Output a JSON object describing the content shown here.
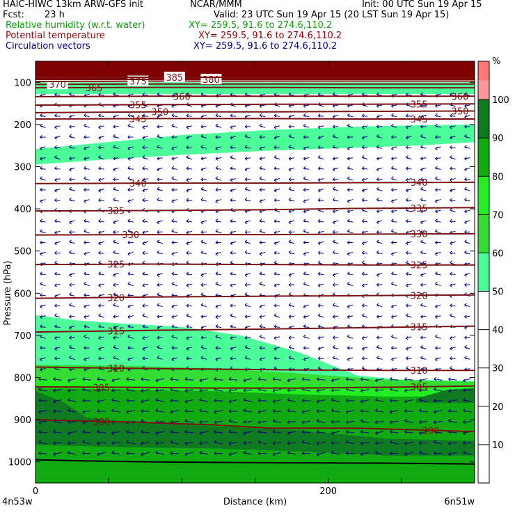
{
  "header": {
    "model": "HAIC-HIWC 13km ARW-GFS init",
    "org": "NCAR/MMM",
    "init": "Init: 00 UTC Sun 19 Apr 15",
    "fcst_label": "Fcst:",
    "fcst_value": "23 h",
    "valid": "Valid: 23 UTC Sun 19 Apr 15 (20 LST Sun 19 Apr 15)",
    "field1": "Relative humidity (w.r.t. water)",
    "field1_xy": "XY= 259.5, 91.6 to 274.6,110.2",
    "field2": "Potential temperature",
    "field2_xy": "XY= 259.5, 91.6 to 274.6,110.2",
    "field3": "Circulation vectors",
    "field3_xy": "XY= 259.5, 91.6 to 274.6,110.2"
  },
  "colors": {
    "rh_field": "#119911",
    "theta_field": "#8b0000",
    "vector_field": "#000080",
    "theta_line": "#7a1212",
    "vector": "#000080",
    "top_block": "#800000",
    "terrain": "#000000"
  },
  "chart_data": {
    "type": "cross-section",
    "title": "",
    "ylabel": "Pressure (hPa)",
    "xlabel": "Distance (km)",
    "x_range": [
      0,
      300
    ],
    "y_range": [
      1050,
      50
    ],
    "y_ticks": [
      100,
      200,
      300,
      400,
      500,
      600,
      700,
      800,
      900,
      1000
    ],
    "x_tick_labels": [
      0,
      200
    ],
    "x_minor_ticks": [
      50,
      100,
      150,
      200,
      250,
      300
    ],
    "left_endpoint_label": "4n53w",
    "right_endpoint_label": "6n51w",
    "colorbar": {
      "unit": "%",
      "levels": [
        10,
        20,
        30,
        40,
        50,
        60,
        70,
        80,
        90,
        100
      ],
      "bins": [
        {
          "from": 0,
          "to": 50,
          "color": "#ffffff"
        },
        {
          "from": 50,
          "to": 60,
          "color": "#4dff9a"
        },
        {
          "from": 60,
          "to": 70,
          "color": "#33dd33"
        },
        {
          "from": 70,
          "to": 80,
          "color": "#22ee22"
        },
        {
          "from": 80,
          "to": 90,
          "color": "#11aa11"
        },
        {
          "from": 90,
          "to": 100,
          "color": "#0f7a1f"
        },
        {
          "from": 100,
          "to": 105,
          "color": "#ff9999"
        },
        {
          "from": 105,
          "to": 110,
          "color": "#ff7777"
        }
      ]
    },
    "rh_regions": [
      {
        "level": 50,
        "top": [
          [
            0,
            258
          ],
          [
            40,
            245
          ],
          [
            100,
            225
          ],
          [
            160,
            213
          ],
          [
            220,
            205
          ],
          [
            260,
            202
          ],
          [
            300,
            200
          ]
        ],
        "bottom": [
          [
            0,
            295
          ],
          [
            40,
            285
          ],
          [
            100,
            272
          ],
          [
            160,
            262
          ],
          [
            220,
            255
          ],
          [
            260,
            250
          ],
          [
            300,
            242
          ]
        ]
      },
      {
        "level": 50,
        "top": [
          [
            0,
            100
          ],
          [
            300,
            100
          ]
        ],
        "bottom": [
          [
            0,
            128
          ],
          [
            300,
            128
          ]
        ]
      },
      {
        "level": 50,
        "top": [
          [
            0,
            652
          ],
          [
            30,
            665
          ],
          [
            60,
            672
          ],
          [
            100,
            680
          ],
          [
            140,
            700
          ],
          [
            180,
            740
          ],
          [
            220,
            795
          ],
          [
            250,
            805
          ],
          [
            300,
            808
          ]
        ],
        "bottom": [
          [
            0,
            1050
          ],
          [
            300,
            1050
          ]
        ]
      },
      {
        "level": 60,
        "top": [
          [
            0,
            770
          ],
          [
            60,
            772
          ],
          [
            120,
            778
          ],
          [
            180,
            790
          ],
          [
            240,
            805
          ],
          [
            300,
            810
          ]
        ],
        "bottom": [
          [
            0,
            1050
          ],
          [
            300,
            1050
          ]
        ]
      },
      {
        "level": 70,
        "top": [
          [
            0,
            805
          ],
          [
            60,
            808
          ],
          [
            120,
            812
          ],
          [
            180,
            818
          ],
          [
            240,
            822
          ],
          [
            300,
            823
          ]
        ],
        "bottom": [
          [
            0,
            1050
          ],
          [
            300,
            1050
          ]
        ]
      },
      {
        "level": 80,
        "top": [
          [
            0,
            825
          ],
          [
            60,
            828
          ],
          [
            120,
            832
          ],
          [
            180,
            840
          ],
          [
            240,
            845
          ],
          [
            300,
            845
          ]
        ],
        "bottom": [
          [
            0,
            1050
          ],
          [
            300,
            1050
          ]
        ]
      },
      {
        "level": 90,
        "top": [
          [
            0,
            832
          ],
          [
            20,
            860
          ],
          [
            35,
            895
          ],
          [
            60,
            905
          ],
          [
            120,
            915
          ],
          [
            180,
            925
          ],
          [
            240,
            945
          ],
          [
            300,
            950
          ]
        ],
        "bottom": [
          [
            0,
            960
          ],
          [
            60,
            965
          ],
          [
            120,
            968
          ],
          [
            180,
            975
          ],
          [
            240,
            985
          ],
          [
            300,
            985
          ]
        ]
      },
      {
        "level": 90,
        "top": [
          [
            260,
            850
          ],
          [
            280,
            830
          ],
          [
            300,
            825
          ]
        ],
        "bottom": [
          [
            260,
            860
          ],
          [
            300,
            860
          ]
        ]
      }
    ],
    "theta_contours": [
      {
        "value": 300,
        "p": [
          [
            0,
            900
          ],
          [
            60,
            905
          ],
          [
            120,
            912
          ],
          [
            160,
            920
          ],
          [
            220,
            920
          ],
          [
            270,
            925
          ],
          [
            300,
            928
          ]
        ],
        "labels": [
          45,
          270
        ]
      },
      {
        "value": 305,
        "p": [
          [
            0,
            822
          ],
          [
            60,
            823
          ],
          [
            120,
            825
          ],
          [
            180,
            825
          ],
          [
            240,
            823
          ],
          [
            300,
            820
          ]
        ],
        "labels": [
          45,
          262
        ]
      },
      {
        "value": 310,
        "p": [
          [
            0,
            775
          ],
          [
            60,
            778
          ],
          [
            120,
            780
          ],
          [
            180,
            782
          ],
          [
            240,
            783
          ],
          [
            300,
            783
          ]
        ],
        "labels": [
          55,
          262
        ]
      },
      {
        "value": 315,
        "p": [
          [
            0,
            692
          ],
          [
            80,
            688
          ],
          [
            160,
            685
          ],
          [
            220,
            682
          ],
          [
            300,
            678
          ]
        ],
        "labels": [
          55,
          262
        ]
      },
      {
        "value": 320,
        "p": [
          [
            0,
            612
          ],
          [
            80,
            609
          ],
          [
            160,
            607
          ],
          [
            220,
            606
          ],
          [
            300,
            604
          ]
        ],
        "labels": [
          55,
          262
        ]
      },
      {
        "value": 325,
        "p": [
          [
            0,
            532
          ],
          [
            80,
            531
          ],
          [
            160,
            532
          ],
          [
            220,
            533
          ],
          [
            300,
            533
          ]
        ],
        "labels": [
          55,
          262
        ]
      },
      {
        "value": 330,
        "p": [
          [
            0,
            462
          ],
          [
            80,
            461
          ],
          [
            160,
            461
          ],
          [
            220,
            460
          ],
          [
            300,
            459
          ]
        ],
        "labels": [
          65,
          262
        ]
      },
      {
        "value": 335,
        "p": [
          [
            0,
            405
          ],
          [
            80,
            404
          ],
          [
            160,
            402
          ],
          [
            220,
            399
          ],
          [
            300,
            397
          ]
        ],
        "labels": [
          55,
          262
        ]
      },
      {
        "value": 340,
        "p": [
          [
            0,
            340
          ],
          [
            80,
            339
          ],
          [
            160,
            339
          ],
          [
            220,
            338
          ],
          [
            300,
            337
          ]
        ],
        "labels": [
          70,
          262
        ]
      },
      {
        "value": 345,
        "p": [
          [
            0,
            187
          ],
          [
            80,
            186
          ],
          [
            160,
            186
          ],
          [
            220,
            187
          ],
          [
            300,
            187
          ]
        ],
        "labels": [
          70,
          262
        ]
      },
      {
        "value": 350,
        "p": [
          [
            0,
            172
          ],
          [
            80,
            170
          ],
          [
            160,
            170
          ],
          [
            220,
            169
          ],
          [
            300,
            168
          ]
        ],
        "labels": [
          85,
          290
        ]
      },
      {
        "value": 355,
        "p": [
          [
            0,
            154
          ],
          [
            80,
            153
          ],
          [
            160,
            152
          ],
          [
            220,
            152
          ],
          [
            300,
            151
          ]
        ],
        "labels": [
          70,
          262
        ]
      },
      {
        "value": 360,
        "p": [
          [
            0,
            134
          ],
          [
            80,
            133
          ],
          [
            160,
            133
          ],
          [
            220,
            133
          ],
          [
            300,
            133
          ]
        ],
        "labels": [
          100,
          290
        ]
      },
      {
        "value": 365,
        "p": [
          [
            0,
            113
          ],
          [
            80,
            112
          ],
          [
            160,
            112
          ],
          [
            220,
            113
          ],
          [
            300,
            113
          ]
        ],
        "labels": [
          40
        ]
      },
      {
        "value": 370,
        "p": [
          [
            0,
            105
          ],
          [
            80,
            104
          ],
          [
            160,
            104
          ],
          [
            300,
            104
          ]
        ],
        "labels": [
          15
        ]
      },
      {
        "value": 375,
        "p": [
          [
            0,
            98
          ],
          [
            80,
            97
          ],
          [
            160,
            97
          ],
          [
            300,
            97
          ]
        ],
        "labels": [
          70
        ]
      },
      {
        "value": 380,
        "p": [
          [
            0,
            93
          ],
          [
            160,
            93
          ],
          [
            300,
            93
          ]
        ],
        "labels": [
          120
        ]
      },
      {
        "value": 385,
        "p": [
          [
            0,
            88
          ],
          [
            160,
            88
          ],
          [
            300,
            88
          ]
        ],
        "labels": [
          95
        ]
      }
    ],
    "top_block": {
      "from_p": 50,
      "to_p": 92
    },
    "terrain": [
      [
        0,
        995
      ],
      [
        40,
        998
      ],
      [
        80,
        1000
      ],
      [
        160,
        1002
      ],
      [
        240,
        1003
      ],
      [
        300,
        1005
      ]
    ],
    "vectors": {
      "x_spacing_km": 10,
      "p_spacing_hpa": 25,
      "p_start": 130,
      "p_end": 990
    }
  }
}
